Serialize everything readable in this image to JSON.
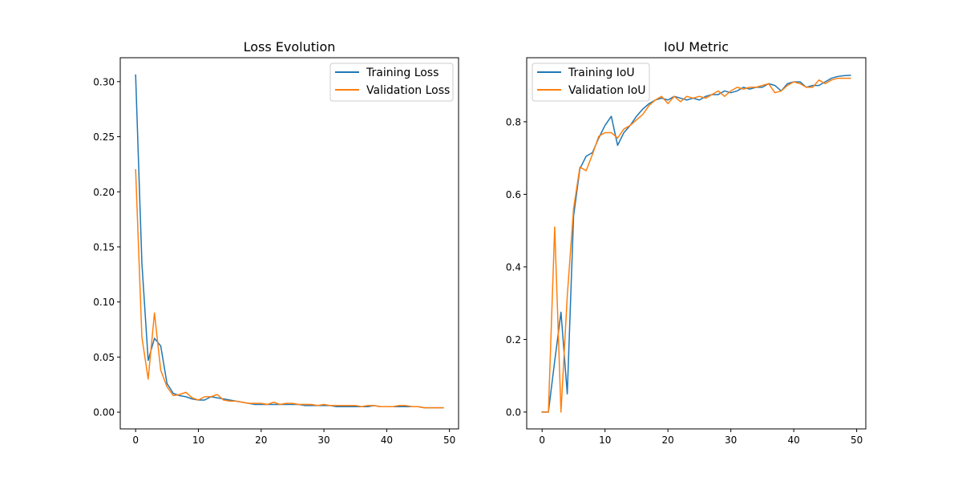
{
  "figure": {
    "background": "#ffffff"
  },
  "chart_data": [
    {
      "type": "line",
      "title": "Loss Evolution",
      "xlabel": "",
      "ylabel": "",
      "xlim": [
        -2.45,
        51.45
      ],
      "ylim": [
        -0.0152,
        0.3217
      ],
      "xticks": [
        0,
        10,
        20,
        30,
        40,
        50
      ],
      "xtick_labels": [
        "0",
        "10",
        "20",
        "30",
        "40",
        "50"
      ],
      "yticks": [
        0.0,
        0.05,
        0.1,
        0.15,
        0.2,
        0.25,
        0.3
      ],
      "ytick_labels": [
        "0.00",
        "0.05",
        "0.10",
        "0.15",
        "0.20",
        "0.25",
        "0.30"
      ],
      "grid": false,
      "legend_position": "top-right",
      "series": [
        {
          "name": "Training Loss",
          "color": "#1f77b4",
          "x": [
            0,
            1,
            2,
            3,
            4,
            5,
            6,
            7,
            8,
            9,
            10,
            11,
            12,
            13,
            14,
            15,
            16,
            17,
            18,
            19,
            20,
            21,
            22,
            23,
            24,
            25,
            26,
            27,
            28,
            29,
            30,
            31,
            32,
            33,
            34,
            35,
            36,
            37,
            38,
            39,
            40,
            41,
            42,
            43,
            44,
            45,
            46,
            47,
            48,
            49
          ],
          "values": [
            0.306,
            0.135,
            0.047,
            0.067,
            0.06,
            0.026,
            0.017,
            0.015,
            0.014,
            0.012,
            0.011,
            0.011,
            0.014,
            0.013,
            0.012,
            0.011,
            0.01,
            0.009,
            0.008,
            0.007,
            0.007,
            0.007,
            0.007,
            0.007,
            0.007,
            0.007,
            0.007,
            0.006,
            0.006,
            0.006,
            0.006,
            0.006,
            0.005,
            0.005,
            0.005,
            0.005,
            0.005,
            0.005,
            0.006,
            0.005,
            0.005,
            0.005,
            0.005,
            0.005,
            0.005,
            0.005,
            0.004,
            0.004,
            0.004,
            0.004
          ]
        },
        {
          "name": "Validation Loss",
          "color": "#ff7f0e",
          "x": [
            0,
            1,
            2,
            3,
            4,
            5,
            6,
            7,
            8,
            9,
            10,
            11,
            12,
            13,
            14,
            15,
            16,
            17,
            18,
            19,
            20,
            21,
            22,
            23,
            24,
            25,
            26,
            27,
            28,
            29,
            30,
            31,
            32,
            33,
            34,
            35,
            36,
            37,
            38,
            39,
            40,
            41,
            42,
            43,
            44,
            45,
            46,
            47,
            48,
            49
          ],
          "values": [
            0.22,
            0.068,
            0.03,
            0.09,
            0.038,
            0.023,
            0.015,
            0.016,
            0.018,
            0.013,
            0.011,
            0.014,
            0.014,
            0.016,
            0.011,
            0.01,
            0.01,
            0.009,
            0.008,
            0.008,
            0.008,
            0.007,
            0.009,
            0.007,
            0.008,
            0.008,
            0.007,
            0.007,
            0.007,
            0.006,
            0.007,
            0.006,
            0.006,
            0.006,
            0.006,
            0.006,
            0.005,
            0.006,
            0.006,
            0.005,
            0.005,
            0.005,
            0.006,
            0.006,
            0.005,
            0.005,
            0.004,
            0.004,
            0.004,
            0.004
          ]
        }
      ]
    },
    {
      "type": "line",
      "title": "IoU Metric",
      "xlabel": "",
      "ylabel": "",
      "xlim": [
        -2.45,
        51.45
      ],
      "ylim": [
        -0.0465,
        0.9765
      ],
      "xticks": [
        0,
        10,
        20,
        30,
        40,
        50
      ],
      "xtick_labels": [
        "0",
        "10",
        "20",
        "30",
        "40",
        "50"
      ],
      "yticks": [
        0.0,
        0.2,
        0.4,
        0.6,
        0.8
      ],
      "ytick_labels": [
        "0.0",
        "0.2",
        "0.4",
        "0.6",
        "0.8"
      ],
      "grid": false,
      "legend_position": "top-left",
      "series": [
        {
          "name": "Training IoU",
          "color": "#1f77b4",
          "x": [
            0,
            1,
            2,
            3,
            4,
            5,
            6,
            7,
            8,
            9,
            10,
            11,
            12,
            13,
            14,
            15,
            16,
            17,
            18,
            19,
            20,
            21,
            22,
            23,
            24,
            25,
            26,
            27,
            28,
            29,
            30,
            31,
            32,
            33,
            34,
            35,
            36,
            37,
            38,
            39,
            40,
            41,
            42,
            43,
            44,
            45,
            46,
            47,
            48,
            49
          ],
          "values": [
            0.0,
            0.0,
            0.14,
            0.275,
            0.05,
            0.54,
            0.67,
            0.705,
            0.715,
            0.755,
            0.79,
            0.815,
            0.735,
            0.77,
            0.79,
            0.815,
            0.835,
            0.85,
            0.86,
            0.865,
            0.86,
            0.87,
            0.865,
            0.86,
            0.865,
            0.86,
            0.87,
            0.875,
            0.875,
            0.885,
            0.88,
            0.885,
            0.895,
            0.89,
            0.895,
            0.895,
            0.905,
            0.9,
            0.885,
            0.905,
            0.91,
            0.91,
            0.895,
            0.9,
            0.9,
            0.91,
            0.92,
            0.925,
            0.927,
            0.928
          ]
        },
        {
          "name": "Validation IoU",
          "color": "#ff7f0e",
          "x": [
            0,
            1,
            2,
            3,
            4,
            5,
            6,
            7,
            8,
            9,
            10,
            11,
            12,
            13,
            14,
            15,
            16,
            17,
            18,
            19,
            20,
            21,
            22,
            23,
            24,
            25,
            26,
            27,
            28,
            29,
            30,
            31,
            32,
            33,
            34,
            35,
            36,
            37,
            38,
            39,
            40,
            41,
            42,
            43,
            44,
            45,
            46,
            47,
            48,
            49
          ],
          "values": [
            0.0,
            0.0,
            0.51,
            0.0,
            0.32,
            0.56,
            0.675,
            0.665,
            0.71,
            0.76,
            0.77,
            0.77,
            0.755,
            0.78,
            0.79,
            0.805,
            0.82,
            0.845,
            0.86,
            0.87,
            0.85,
            0.87,
            0.855,
            0.87,
            0.865,
            0.87,
            0.865,
            0.875,
            0.885,
            0.87,
            0.885,
            0.895,
            0.89,
            0.895,
            0.895,
            0.9,
            0.905,
            0.88,
            0.885,
            0.9,
            0.91,
            0.905,
            0.895,
            0.895,
            0.915,
            0.905,
            0.915,
            0.92,
            0.92,
            0.92
          ]
        }
      ]
    }
  ]
}
